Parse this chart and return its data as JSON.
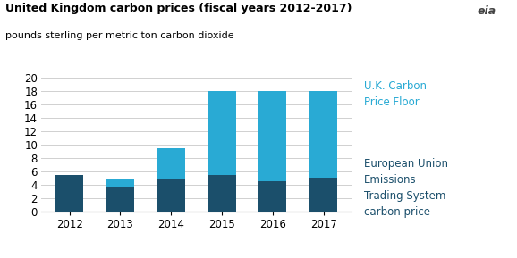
{
  "years": [
    "2012",
    "2013",
    "2014",
    "2015",
    "2016",
    "2017"
  ],
  "eu_ets": [
    5.5,
    3.7,
    4.8,
    5.5,
    4.5,
    5.0
  ],
  "uk_cpf": [
    0.0,
    1.2,
    4.7,
    12.5,
    13.5,
    13.0
  ],
  "color_dark": "#1b4f6b",
  "color_light": "#29aad4",
  "title_line1": "United Kingdom carbon prices (fiscal years 2012-2017)",
  "title_line2": "pounds sterling per metric ton carbon dioxide",
  "label_cpf": "U.K. Carbon\nPrice Floor",
  "label_eu": "European Union\nEmissions\nTrading System\ncarbon price",
  "ylim": [
    0,
    20
  ],
  "yticks": [
    0,
    2,
    4,
    6,
    8,
    10,
    12,
    14,
    16,
    18,
    20
  ],
  "background_color": "#ffffff",
  "bar_width": 0.55
}
